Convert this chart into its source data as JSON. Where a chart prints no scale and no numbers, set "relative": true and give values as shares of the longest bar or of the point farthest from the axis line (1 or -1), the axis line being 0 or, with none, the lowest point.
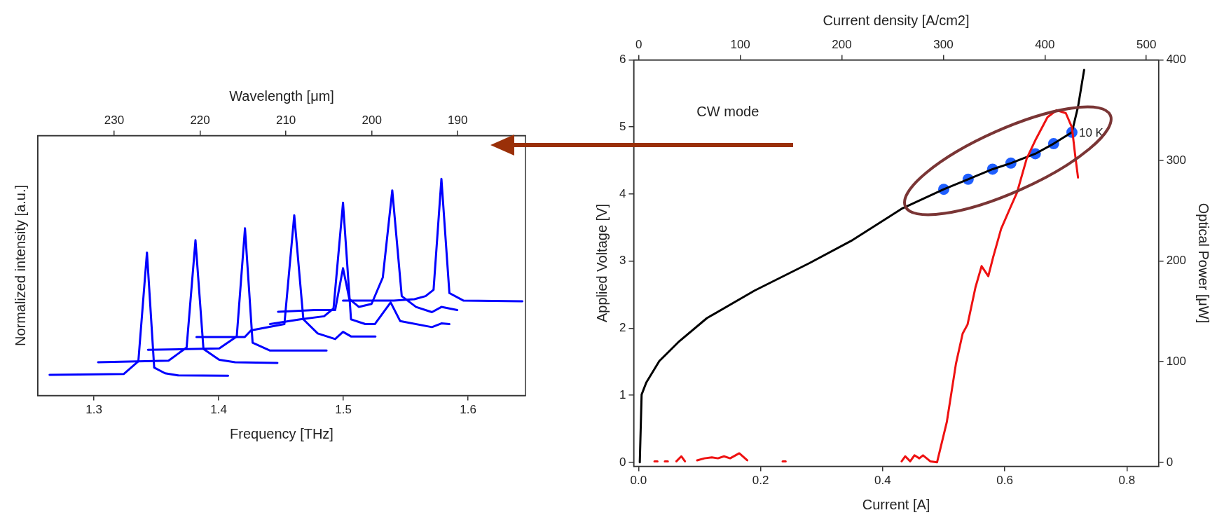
{
  "chart_data": [
    {
      "type": "line",
      "relative": true,
      "xlabel": "Frequency [THz]",
      "x2label": "Wavelength [μm]",
      "ylabel": "Normalized intensity [a.u.]",
      "xlim": [
        1.255,
        1.646
      ],
      "xticks": [
        1.3,
        1.4,
        1.5,
        1.6
      ],
      "x2lim": [
        238.9,
        182.1
      ],
      "x2ticks": [
        230,
        220,
        210,
        200,
        190
      ],
      "tick_labels": "x",
      "grid": false,
      "legend": false,
      "series": [
        {
          "color": "#0000ff",
          "x": [
            1.2644,
            1.324,
            1.3356,
            1.3425,
            1.3483,
            1.357,
            1.3674,
            1.4076
          ],
          "values": [
            0.096,
            0.1,
            0.158,
            0.66,
            0.129,
            0.103,
            0.093,
            0.092
          ]
        },
        {
          "color": "#0000ff",
          "x": [
            1.3033,
            1.3598,
            1.3743,
            1.3814,
            1.3878,
            1.4005,
            1.4132,
            1.4471
          ],
          "values": [
            0.154,
            0.161,
            0.222,
            0.717,
            0.215,
            0.165,
            0.154,
            0.151
          ]
        },
        {
          "color": "#0000ff",
          "x": [
            1.3433,
            1.4005,
            1.4145,
            1.4211,
            1.4272,
            1.4412,
            1.4865
          ],
          "values": [
            0.211,
            0.218,
            0.273,
            0.772,
            0.244,
            0.208,
            0.208
          ]
        },
        {
          "color": "#0000ff",
          "x": [
            1.3822,
            1.4209,
            1.426,
            1.4527,
            1.4606,
            1.4679,
            1.4794,
            1.4934,
            1.4997,
            1.5061,
            1.5257
          ],
          "values": [
            0.27,
            0.27,
            0.301,
            0.33,
            0.832,
            0.352,
            0.287,
            0.261,
            0.294,
            0.273,
            0.273
          ]
        },
        {
          "color": "#0000ff",
          "x": [
            1.4412,
            1.4654,
            1.4845,
            1.4921,
            1.4997,
            1.5061,
            1.5176,
            1.5252,
            1.5379,
            1.5455,
            1.571,
            1.5786,
            1.585
          ],
          "values": [
            0.33,
            0.352,
            0.366,
            0.402,
            0.89,
            0.352,
            0.33,
            0.33,
            0.43,
            0.344,
            0.316,
            0.333,
            0.33
          ]
        },
        {
          "color": "#0000ff",
          "x": [
            1.4476,
            1.4768,
            1.4934,
            1.4997,
            1.5048,
            1.5125,
            1.5226,
            1.5316,
            1.5392,
            1.5468,
            1.5583,
            1.571,
            1.5786,
            1.5913
          ],
          "values": [
            0.387,
            0.395,
            0.395,
            0.588,
            0.445,
            0.409,
            0.423,
            0.545,
            0.947,
            0.459,
            0.409,
            0.385,
            0.409,
            0.395
          ]
        },
        {
          "color": "#0000ff",
          "x": [
            1.4997,
            1.5405,
            1.557,
            1.5659,
            1.5723,
            1.5786,
            1.585,
            1.5964,
            1.6435
          ],
          "values": [
            0.438,
            0.438,
            0.445,
            0.459,
            0.488,
            1.0,
            0.473,
            0.438,
            0.435
          ]
        }
      ]
    },
    {
      "type": "line",
      "xlabel": "Current [A]",
      "x2label": "Current density [A/cm2]",
      "ylabel": "Applied Voltage [V]",
      "y2label": "Optical Power [μW]",
      "xlim": [
        -0.008,
        0.852
      ],
      "xticks": [
        {
          "value": 0,
          "label": "0.0"
        },
        0.2,
        0.4,
        0.6,
        0.8
      ],
      "x2lim": [
        -5,
        512
      ],
      "x2ticks": [
        0,
        100,
        200,
        300,
        400,
        500
      ],
      "ylim": [
        -0.06,
        6
      ],
      "yticks": [
        0,
        1,
        2,
        3,
        4,
        5,
        6
      ],
      "y2lim": [
        -4,
        400
      ],
      "y2ticks": [
        0,
        100,
        200,
        300,
        400
      ],
      "grid": false,
      "legend": false,
      "annotations": [
        "CW mode",
        {
          "text": "10 K",
          "x": 0.71,
          "y": 4.92
        }
      ],
      "series": [
        {
          "color": "#ee1111",
          "axis": "y2",
          "x": [
            0.026,
            0.031,
            0.035,
            0.043,
            0.048,
            0.05,
            0.062,
            0.07,
            0.076,
            0.079,
            0.096,
            0.108,
            0.12,
            0.13,
            0.14,
            0.15,
            0.165,
            0.178,
            0.18,
            0.236,
            0.241,
            0.242,
            0.431,
            0.437,
            0.445,
            0.452,
            0.46,
            0.466,
            0.478,
            0.489,
            0.505,
            0.52,
            0.531,
            0.539,
            0.552,
            0.562,
            0.573,
            0.581,
            0.594,
            0.609,
            0.62,
            0.636,
            0.65,
            0.67,
            0.685,
            0.7,
            0.71,
            0.715,
            0.72
          ],
          "values": [
            1,
            1,
            null,
            1,
            1,
            null,
            1,
            6,
            1,
            null,
            2,
            4,
            5,
            4,
            6,
            4,
            9,
            2,
            null,
            1,
            1,
            null,
            1,
            6,
            1,
            7,
            4,
            7,
            1,
            0,
            40,
            98,
            128,
            137,
            174,
            195,
            185,
            204,
            232,
            253,
            268,
            302,
            320,
            343,
            350,
            347,
            333,
            307,
            283
          ]
        },
        {
          "color": "#000000",
          "x": [
            0.002,
            0.005,
            0.0126,
            0.034,
            0.065,
            0.112,
            0.19,
            0.28,
            0.348,
            0.431,
            0.5,
            0.54,
            0.58,
            0.61,
            0.65,
            0.68,
            0.71,
            0.72,
            0.73
          ],
          "values": [
            0,
            1.01,
            1.19,
            1.51,
            1.79,
            2.15,
            2.56,
            2.97,
            3.3,
            3.78,
            4.07,
            4.22,
            4.37,
            4.46,
            4.6,
            4.75,
            4.92,
            5.3,
            5.85
          ]
        },
        {
          "type": "scatter",
          "marker": "circle",
          "color": "#1f5fff",
          "x": [
            0.5,
            0.54,
            0.58,
            0.61,
            0.65,
            0.68,
            0.71
          ],
          "values": [
            4.07,
            4.22,
            4.37,
            4.46,
            4.6,
            4.75,
            4.92
          ]
        }
      ]
    }
  ]
}
